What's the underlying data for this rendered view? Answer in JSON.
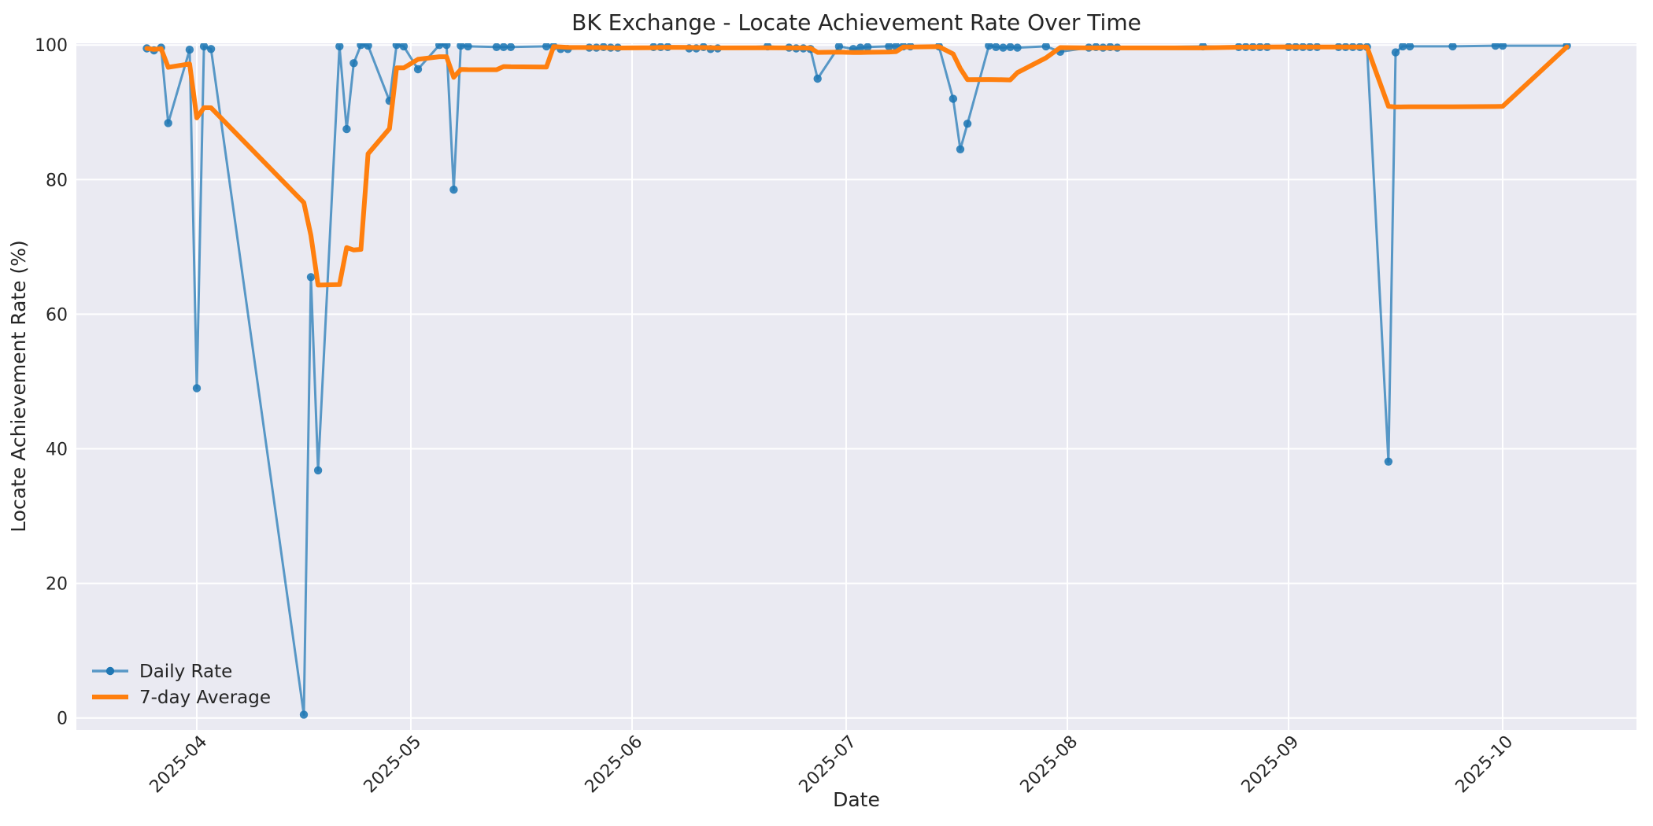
{
  "chart_data": {
    "type": "line",
    "title": "BK Exchange - Locate Achievement Rate Over Time",
    "xlabel": "Date",
    "ylabel": "Locate Achievement Rate (%)",
    "ylim": [
      0,
      100
    ],
    "yticks": [
      0,
      20,
      40,
      60,
      80,
      100
    ],
    "xticks": [
      {
        "label": "2025-04",
        "date": "2025-04-01"
      },
      {
        "label": "2025-05",
        "date": "2025-05-01"
      },
      {
        "label": "2025-06",
        "date": "2025-06-01"
      },
      {
        "label": "2025-07",
        "date": "2025-07-01"
      },
      {
        "label": "2025-08",
        "date": "2025-08-01"
      },
      {
        "label": "2025-09",
        "date": "2025-09-01"
      },
      {
        "label": "2025-10",
        "date": "2025-10-01"
      }
    ],
    "grid": true,
    "plot_background": "#eaeaf2",
    "grid_color": "#ffffff",
    "legend_position": "lower left",
    "series": [
      {
        "name": "Daily Rate",
        "color": "#1f77b4",
        "line_alpha": 0.72,
        "marker": "circle",
        "dates": [
          "2025-03-25",
          "2025-03-26",
          "2025-03-27",
          "2025-03-28",
          "2025-03-31",
          "2025-04-01",
          "2025-04-02",
          "2025-04-03",
          "2025-04-16",
          "2025-04-17",
          "2025-04-18",
          "2025-04-21",
          "2025-04-22",
          "2025-04-23",
          "2025-04-24",
          "2025-04-25",
          "2025-04-28",
          "2025-04-29",
          "2025-04-30",
          "2025-05-02",
          "2025-05-05",
          "2025-05-06",
          "2025-05-07",
          "2025-05-08",
          "2025-05-09",
          "2025-05-13",
          "2025-05-14",
          "2025-05-15",
          "2025-05-20",
          "2025-05-21",
          "2025-05-22",
          "2025-05-23",
          "2025-05-26",
          "2025-05-27",
          "2025-05-28",
          "2025-05-29",
          "2025-05-30",
          "2025-06-04",
          "2025-06-05",
          "2025-06-06",
          "2025-06-09",
          "2025-06-10",
          "2025-06-11",
          "2025-06-12",
          "2025-06-13",
          "2025-06-20",
          "2025-06-23",
          "2025-06-24",
          "2025-06-25",
          "2025-06-26",
          "2025-06-27",
          "2025-06-30",
          "2025-07-02",
          "2025-07-03",
          "2025-07-04",
          "2025-07-07",
          "2025-07-08",
          "2025-07-09",
          "2025-07-10",
          "2025-07-14",
          "2025-07-16",
          "2025-07-17",
          "2025-07-18",
          "2025-07-21",
          "2025-07-22",
          "2025-07-23",
          "2025-07-24",
          "2025-07-25",
          "2025-07-29",
          "2025-07-31",
          "2025-08-04",
          "2025-08-05",
          "2025-08-06",
          "2025-08-07",
          "2025-08-08",
          "2025-08-20",
          "2025-08-25",
          "2025-08-26",
          "2025-08-27",
          "2025-08-28",
          "2025-08-29",
          "2025-09-01",
          "2025-09-02",
          "2025-09-03",
          "2025-09-04",
          "2025-09-05",
          "2025-09-08",
          "2025-09-09",
          "2025-09-10",
          "2025-09-11",
          "2025-09-12",
          "2025-09-15",
          "2025-09-16",
          "2025-09-17",
          "2025-09-18",
          "2025-09-24",
          "2025-09-30",
          "2025-10-01",
          "2025-10-10"
        ],
        "values": [
          99.5,
          99.2,
          99.6,
          88.4,
          99.3,
          49.0,
          99.8,
          99.4,
          0.5,
          65.5,
          36.8,
          99.8,
          87.5,
          97.3,
          100.0,
          99.9,
          91.7,
          100.0,
          99.8,
          96.4,
          100.0,
          100.0,
          78.5,
          99.9,
          99.8,
          99.7,
          99.7,
          99.7,
          99.8,
          99.8,
          99.4,
          99.4,
          99.6,
          99.6,
          99.7,
          99.6,
          99.6,
          99.7,
          99.7,
          99.7,
          99.5,
          99.5,
          99.7,
          99.4,
          99.5,
          99.8,
          99.6,
          99.5,
          99.5,
          99.4,
          95.0,
          99.8,
          99.4,
          99.6,
          99.7,
          99.8,
          99.8,
          99.8,
          99.8,
          99.8,
          92.0,
          84.5,
          88.3,
          99.9,
          99.7,
          99.6,
          99.7,
          99.6,
          99.8,
          99.0,
          99.6,
          99.7,
          99.6,
          99.7,
          99.6,
          99.8,
          99.7,
          99.7,
          99.7,
          99.7,
          99.7,
          99.7,
          99.7,
          99.7,
          99.7,
          99.7,
          99.7,
          99.7,
          99.7,
          99.7,
          99.7,
          38.1,
          98.9,
          99.8,
          99.8,
          99.8,
          99.9,
          99.9,
          99.9
        ]
      },
      {
        "name": "7-day Average",
        "color": "#ff7f0e",
        "derived": "rolling_mean_of_daily_rate",
        "window": 7,
        "min_periods": 1
      }
    ]
  }
}
